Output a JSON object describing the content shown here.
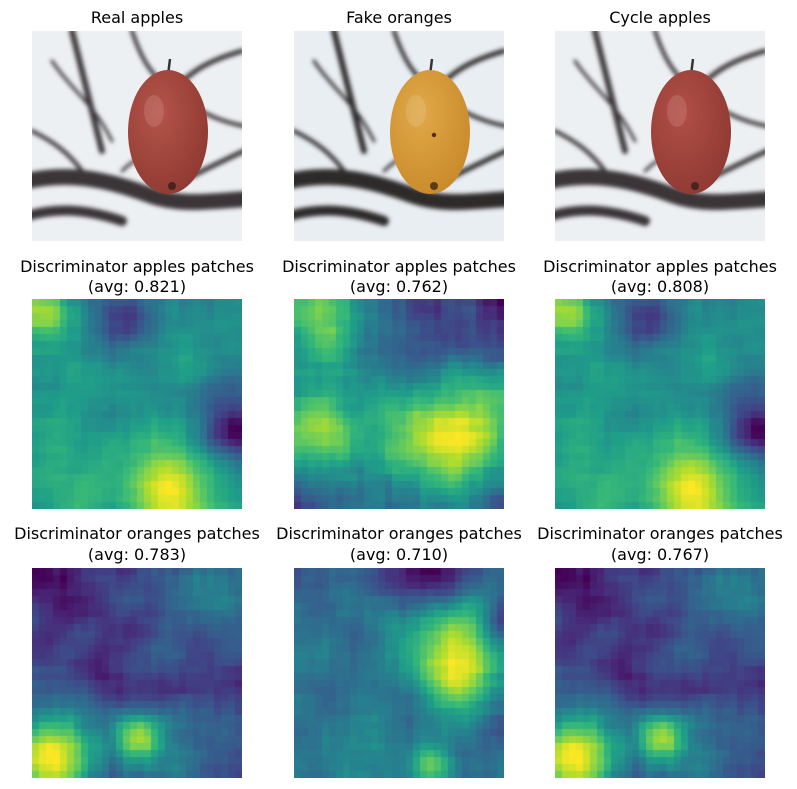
{
  "figure": {
    "row1": [
      {
        "title": "Real apples",
        "fruit_color": "#8f3a31",
        "fruit_highlight": "#b5544a"
      },
      {
        "title": "Fake oranges",
        "fruit_color": "#c98a2a",
        "fruit_highlight": "#e0a94a"
      },
      {
        "title": "Cycle apples",
        "fruit_color": "#8e3a33",
        "fruit_highlight": "#b24f46"
      }
    ],
    "row2": [
      {
        "title_line1": "Discriminator apples patches",
        "title_line2": "(avg: 0.821)",
        "seed": 11
      },
      {
        "title_line1": "Discriminator apples patches",
        "title_line2": "(avg: 0.762)",
        "seed": 23
      },
      {
        "title_line1": "Discriminator apples patches",
        "title_line2": "(avg: 0.808)",
        "seed": 11
      }
    ],
    "row3": [
      {
        "title_line1": "Discriminator oranges patches",
        "title_line2": "(avg: 0.783)",
        "seed": 37
      },
      {
        "title_line1": "Discriminator oranges patches",
        "title_line2": "(avg: 0.710)",
        "seed": 53
      },
      {
        "title_line1": "Discriminator oranges patches",
        "title_line2": "(avg: 0.767)",
        "seed": 37
      }
    ],
    "colormap": "viridis"
  }
}
